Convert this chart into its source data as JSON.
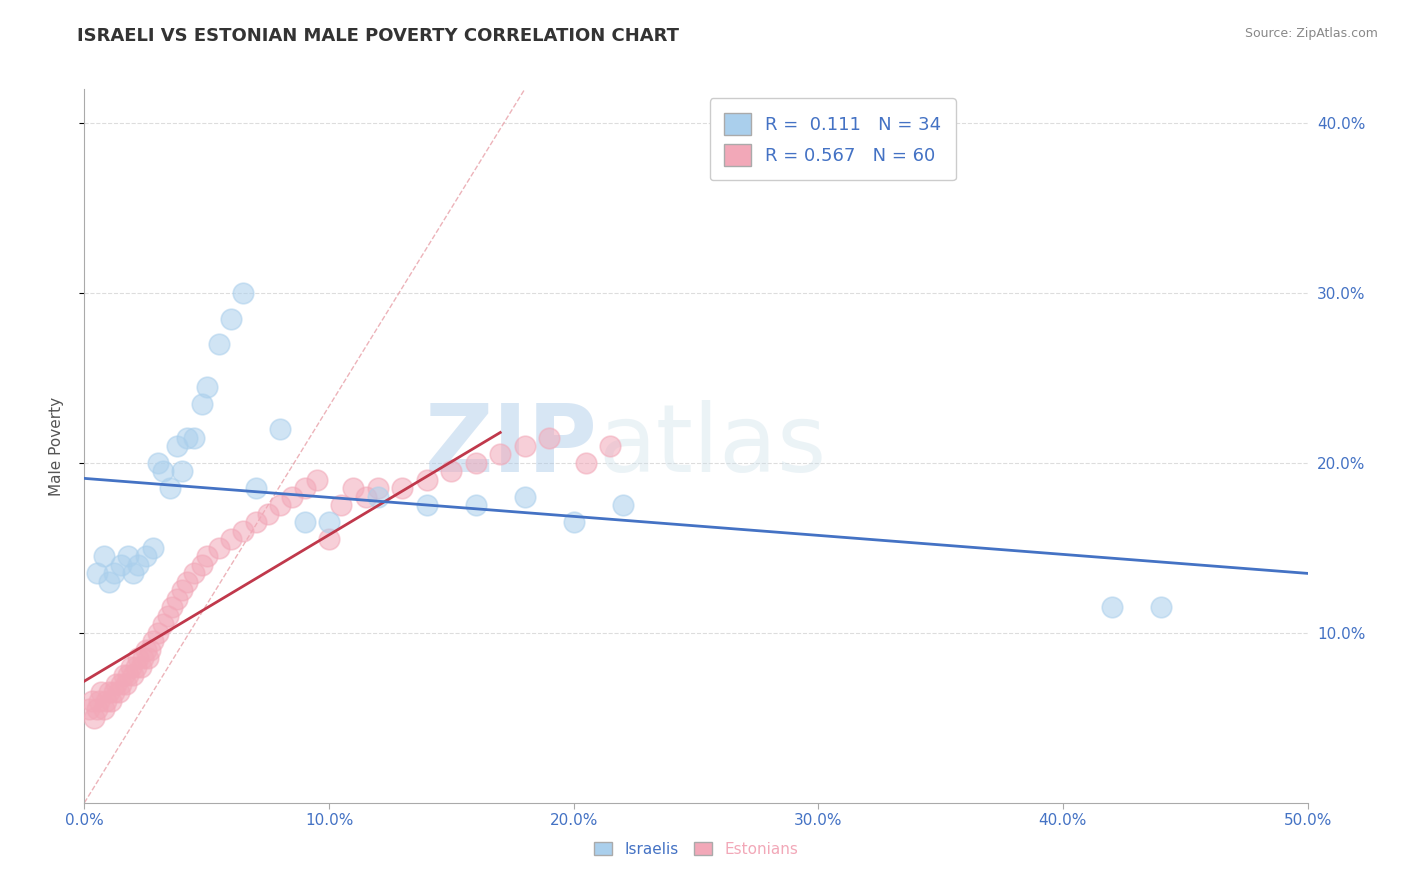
{
  "title": "ISRAELI VS ESTONIAN MALE POVERTY CORRELATION CHART",
  "source": "Source: ZipAtlas.com",
  "ylabel": "Male Poverty",
  "xlabel_israelis": "Israelis",
  "xlabel_estonians": "Estonians",
  "xlim": [
    0.0,
    0.5
  ],
  "ylim": [
    0.0,
    0.42
  ],
  "xticks": [
    0.0,
    0.1,
    0.2,
    0.3,
    0.4,
    0.5
  ],
  "yticks_right": [
    0.1,
    0.2,
    0.3,
    0.4
  ],
  "ytick_labels_right": [
    "10.0%",
    "20.0%",
    "30.0%",
    "40.0%"
  ],
  "xtick_labels": [
    "0.0%",
    "10.0%",
    "20.0%",
    "30.0%",
    "40.0%",
    "50.0%"
  ],
  "israeli_color": "#aacfec",
  "estonian_color": "#f2a8b8",
  "israeli_line_color": "#4472c4",
  "estonian_line_color": "#c0384b",
  "diag_line_color": "#e8a0a8",
  "R_israeli": 0.111,
  "N_israeli": 34,
  "R_estonian": 0.567,
  "N_estonian": 60,
  "israelis_x": [
    0.005,
    0.008,
    0.01,
    0.012,
    0.015,
    0.018,
    0.02,
    0.022,
    0.025,
    0.028,
    0.03,
    0.032,
    0.035,
    0.038,
    0.04,
    0.042,
    0.045,
    0.048,
    0.05,
    0.055,
    0.06,
    0.065,
    0.07,
    0.08,
    0.09,
    0.1,
    0.12,
    0.14,
    0.16,
    0.18,
    0.2,
    0.22,
    0.42,
    0.44
  ],
  "israelis_y": [
    0.135,
    0.145,
    0.13,
    0.135,
    0.14,
    0.145,
    0.135,
    0.14,
    0.145,
    0.15,
    0.2,
    0.195,
    0.185,
    0.21,
    0.195,
    0.215,
    0.215,
    0.235,
    0.245,
    0.27,
    0.285,
    0.3,
    0.185,
    0.22,
    0.165,
    0.165,
    0.18,
    0.175,
    0.175,
    0.18,
    0.165,
    0.175,
    0.115,
    0.115
  ],
  "estonians_x": [
    0.002,
    0.003,
    0.004,
    0.005,
    0.006,
    0.007,
    0.008,
    0.009,
    0.01,
    0.011,
    0.012,
    0.013,
    0.014,
    0.015,
    0.016,
    0.017,
    0.018,
    0.019,
    0.02,
    0.021,
    0.022,
    0.023,
    0.024,
    0.025,
    0.026,
    0.027,
    0.028,
    0.03,
    0.032,
    0.034,
    0.036,
    0.038,
    0.04,
    0.042,
    0.045,
    0.048,
    0.05,
    0.055,
    0.06,
    0.065,
    0.07,
    0.075,
    0.08,
    0.085,
    0.09,
    0.095,
    0.1,
    0.105,
    0.11,
    0.115,
    0.12,
    0.13,
    0.14,
    0.15,
    0.16,
    0.17,
    0.18,
    0.19,
    0.205,
    0.215
  ],
  "estonians_y": [
    0.055,
    0.06,
    0.05,
    0.055,
    0.06,
    0.065,
    0.055,
    0.06,
    0.065,
    0.06,
    0.065,
    0.07,
    0.065,
    0.07,
    0.075,
    0.07,
    0.075,
    0.08,
    0.075,
    0.08,
    0.085,
    0.08,
    0.085,
    0.09,
    0.085,
    0.09,
    0.095,
    0.1,
    0.105,
    0.11,
    0.115,
    0.12,
    0.125,
    0.13,
    0.135,
    0.14,
    0.145,
    0.15,
    0.155,
    0.16,
    0.165,
    0.17,
    0.175,
    0.18,
    0.185,
    0.19,
    0.155,
    0.175,
    0.185,
    0.18,
    0.185,
    0.185,
    0.19,
    0.195,
    0.2,
    0.205,
    0.21,
    0.215,
    0.2,
    0.21
  ],
  "watermark_zip": "ZIP",
  "watermark_atlas": "atlas",
  "background_color": "#ffffff",
  "grid_color": "#dddddd",
  "title_fontsize": 13,
  "axis_label_fontsize": 11,
  "tick_fontsize": 11,
  "legend_fontsize": 13
}
